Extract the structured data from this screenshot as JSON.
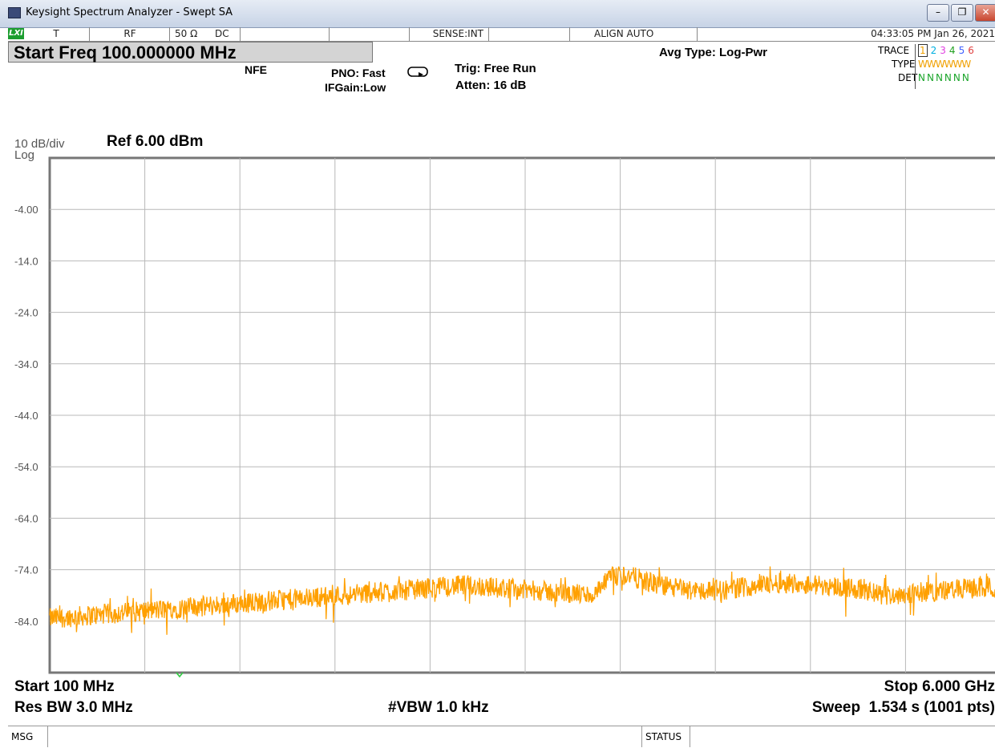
{
  "window": {
    "title": "Keysight Spectrum Analyzer - Swept SA",
    "buttons": [
      "minimize",
      "restore",
      "close"
    ]
  },
  "status_row": {
    "lxi": "LXI",
    "trigger_mode": "T",
    "input": "RF",
    "impedance": "50 Ω",
    "coupling": "DC",
    "sense": "SENSE:INT",
    "align": "ALIGN AUTO",
    "datetime": "04:33:05 PM Jan 26, 2021"
  },
  "active_function": "Start Freq 100.000000 MHz",
  "settings": {
    "nfe": "NFE",
    "pno": "PNO: Fast",
    "ifgain": "IFGain:Low",
    "trig": "Trig: Free Run",
    "atten": "Atten: 16 dB",
    "avg_type": "Avg Type: Log-Pwr"
  },
  "trace_panel": {
    "trace_label": "TRACE",
    "trace_numbers": [
      "1",
      "2",
      "3",
      "4",
      "5",
      "6"
    ],
    "trace_colors": [
      "#f0a000",
      "#00b0e0",
      "#e040e0",
      "#20a020",
      "#4060ff",
      "#e04040"
    ],
    "type_label": "TYPE",
    "type_value": "WWWWWW",
    "det_label": "DET",
    "det_value": "NNNNNN"
  },
  "scale": {
    "per_div": "10 dB/div",
    "scale_type": "Log",
    "ref": "Ref 6.00 dBm"
  },
  "y_tick_labels": [
    "-4.00",
    "-14.0",
    "-24.0",
    "-34.0",
    "-44.0",
    "-54.0",
    "-64.0",
    "-74.0",
    "-84.0"
  ],
  "footer": {
    "start": "Start 100 MHz",
    "stop": "Stop 6.000 GHz",
    "res_bw": "Res BW 3.0 MHz",
    "vbw": "#VBW 1.0 kHz",
    "sweep": "Sweep  1.534 s (1001 pts)"
  },
  "message_bar": {
    "msg": "MSG",
    "status": "STATUS"
  },
  "chart_data": {
    "type": "line",
    "x_start_mhz": 100,
    "x_stop_mhz": 6000,
    "ylim": [
      -94,
      6
    ],
    "y_unit": "dBm",
    "trace_color": "#ffa000",
    "series": [
      {
        "values_mhz_dbm": [
          [
            100,
            -83.5
          ],
          [
            300,
            -83.0
          ],
          [
            500,
            -82.5
          ],
          [
            700,
            -82.0
          ],
          [
            900,
            -81.5
          ],
          [
            1100,
            -81.0
          ],
          [
            1300,
            -80.5
          ],
          [
            1500,
            -80.0
          ],
          [
            1700,
            -79.5
          ],
          [
            1900,
            -79.0
          ],
          [
            2100,
            -78.5
          ],
          [
            2300,
            -78.0
          ],
          [
            2500,
            -77.5
          ],
          [
            2700,
            -77.0
          ],
          [
            2900,
            -77.5
          ],
          [
            3100,
            -78.0
          ],
          [
            3300,
            -78.5
          ],
          [
            3500,
            -79.0
          ],
          [
            3600,
            -75.5
          ],
          [
            3700,
            -75.0
          ],
          [
            3900,
            -77.0
          ],
          [
            4100,
            -78.0
          ],
          [
            4300,
            -78.0
          ],
          [
            4500,
            -77.0
          ],
          [
            4700,
            -76.5
          ],
          [
            4900,
            -77.0
          ],
          [
            5100,
            -77.5
          ],
          [
            5300,
            -79.0
          ],
          [
            5500,
            -78.5
          ],
          [
            5700,
            -78.0
          ],
          [
            5900,
            -77.5
          ],
          [
            6000,
            -77.5
          ]
        ]
      }
    ]
  }
}
